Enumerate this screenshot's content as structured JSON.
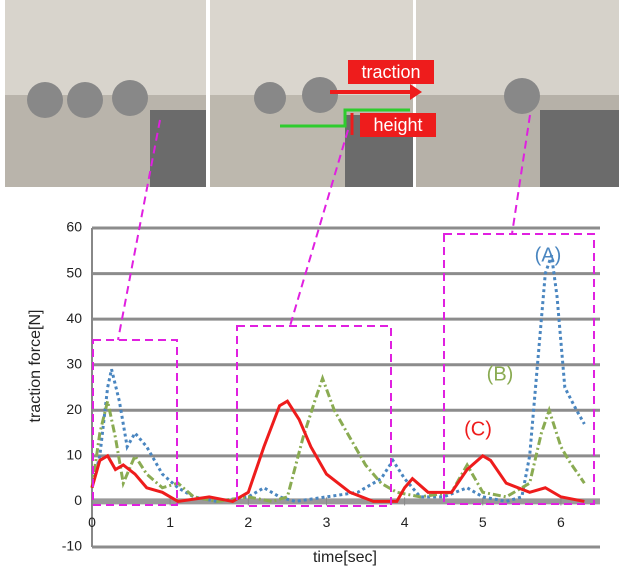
{
  "chart_data": {
    "type": "line",
    "xlabel": "time[sec]",
    "ylabel": "traction force[N]",
    "annotations": [
      "traction",
      "height"
    ],
    "xlim": [
      0,
      6.5
    ],
    "xticks": [
      0,
      1,
      2,
      3,
      4,
      5,
      6
    ],
    "ylim": [
      -10,
      60
    ],
    "yticks": [
      -10,
      0,
      10,
      20,
      30,
      40,
      50,
      60
    ],
    "grid": true,
    "series": [
      {
        "name": "(A)",
        "color": "#4a86c0",
        "style": "dotted",
        "x": [
          0,
          0.1,
          0.2,
          0.25,
          0.35,
          0.45,
          0.55,
          0.7,
          0.9,
          1.1,
          1.3,
          1.6,
          2.0,
          2.2,
          2.4,
          2.6,
          3.0,
          3.4,
          3.7,
          3.85,
          4.0,
          4.2,
          4.5,
          4.8,
          5.0,
          5.3,
          5.5,
          5.6,
          5.7,
          5.8,
          5.88,
          5.95,
          6.05,
          6.2,
          6.3
        ],
        "values": [
          3,
          10,
          25,
          29,
          22,
          12,
          15,
          12,
          6,
          3,
          1,
          0,
          1,
          3,
          1,
          0,
          1,
          2,
          5,
          9,
          5,
          1,
          1,
          3,
          1,
          0,
          1,
          10,
          30,
          50,
          54,
          45,
          25,
          20,
          17
        ]
      },
      {
        "name": "(B)",
        "color": "#8aab52",
        "style": "dashdot",
        "x": [
          0,
          0.1,
          0.2,
          0.3,
          0.4,
          0.55,
          0.7,
          0.9,
          1.1,
          1.3,
          1.6,
          2.0,
          2.3,
          2.5,
          2.7,
          2.85,
          2.95,
          3.1,
          3.3,
          3.5,
          3.7,
          3.9,
          4.2,
          4.6,
          4.8,
          5.0,
          5.3,
          5.6,
          5.75,
          5.85,
          6.0,
          6.1,
          6.3
        ],
        "values": [
          3,
          15,
          22,
          14,
          4,
          10,
          6,
          3,
          4,
          1,
          0,
          1,
          0,
          1,
          14,
          22,
          27,
          20,
          14,
          8,
          4,
          2,
          1,
          2,
          8,
          2,
          1,
          4,
          15,
          20,
          12,
          9,
          4
        ]
      },
      {
        "name": "(C)",
        "color": "#ee1c1c",
        "style": "solid",
        "x": [
          0,
          0.1,
          0.2,
          0.3,
          0.4,
          0.55,
          0.7,
          0.9,
          1.1,
          1.5,
          1.8,
          2.0,
          2.2,
          2.4,
          2.5,
          2.65,
          2.8,
          3.0,
          3.3,
          3.6,
          3.9,
          4.0,
          4.1,
          4.3,
          4.6,
          4.8,
          5.0,
          5.1,
          5.3,
          5.6,
          5.8,
          6.0,
          6.3
        ],
        "values": [
          3,
          9,
          10,
          7,
          8,
          6,
          3,
          2,
          0,
          1,
          0,
          2,
          12,
          21,
          22,
          18,
          12,
          6,
          2,
          0,
          0,
          3,
          5,
          2,
          2,
          7,
          10,
          9,
          4,
          2,
          3,
          1,
          0
        ]
      }
    ]
  }
}
